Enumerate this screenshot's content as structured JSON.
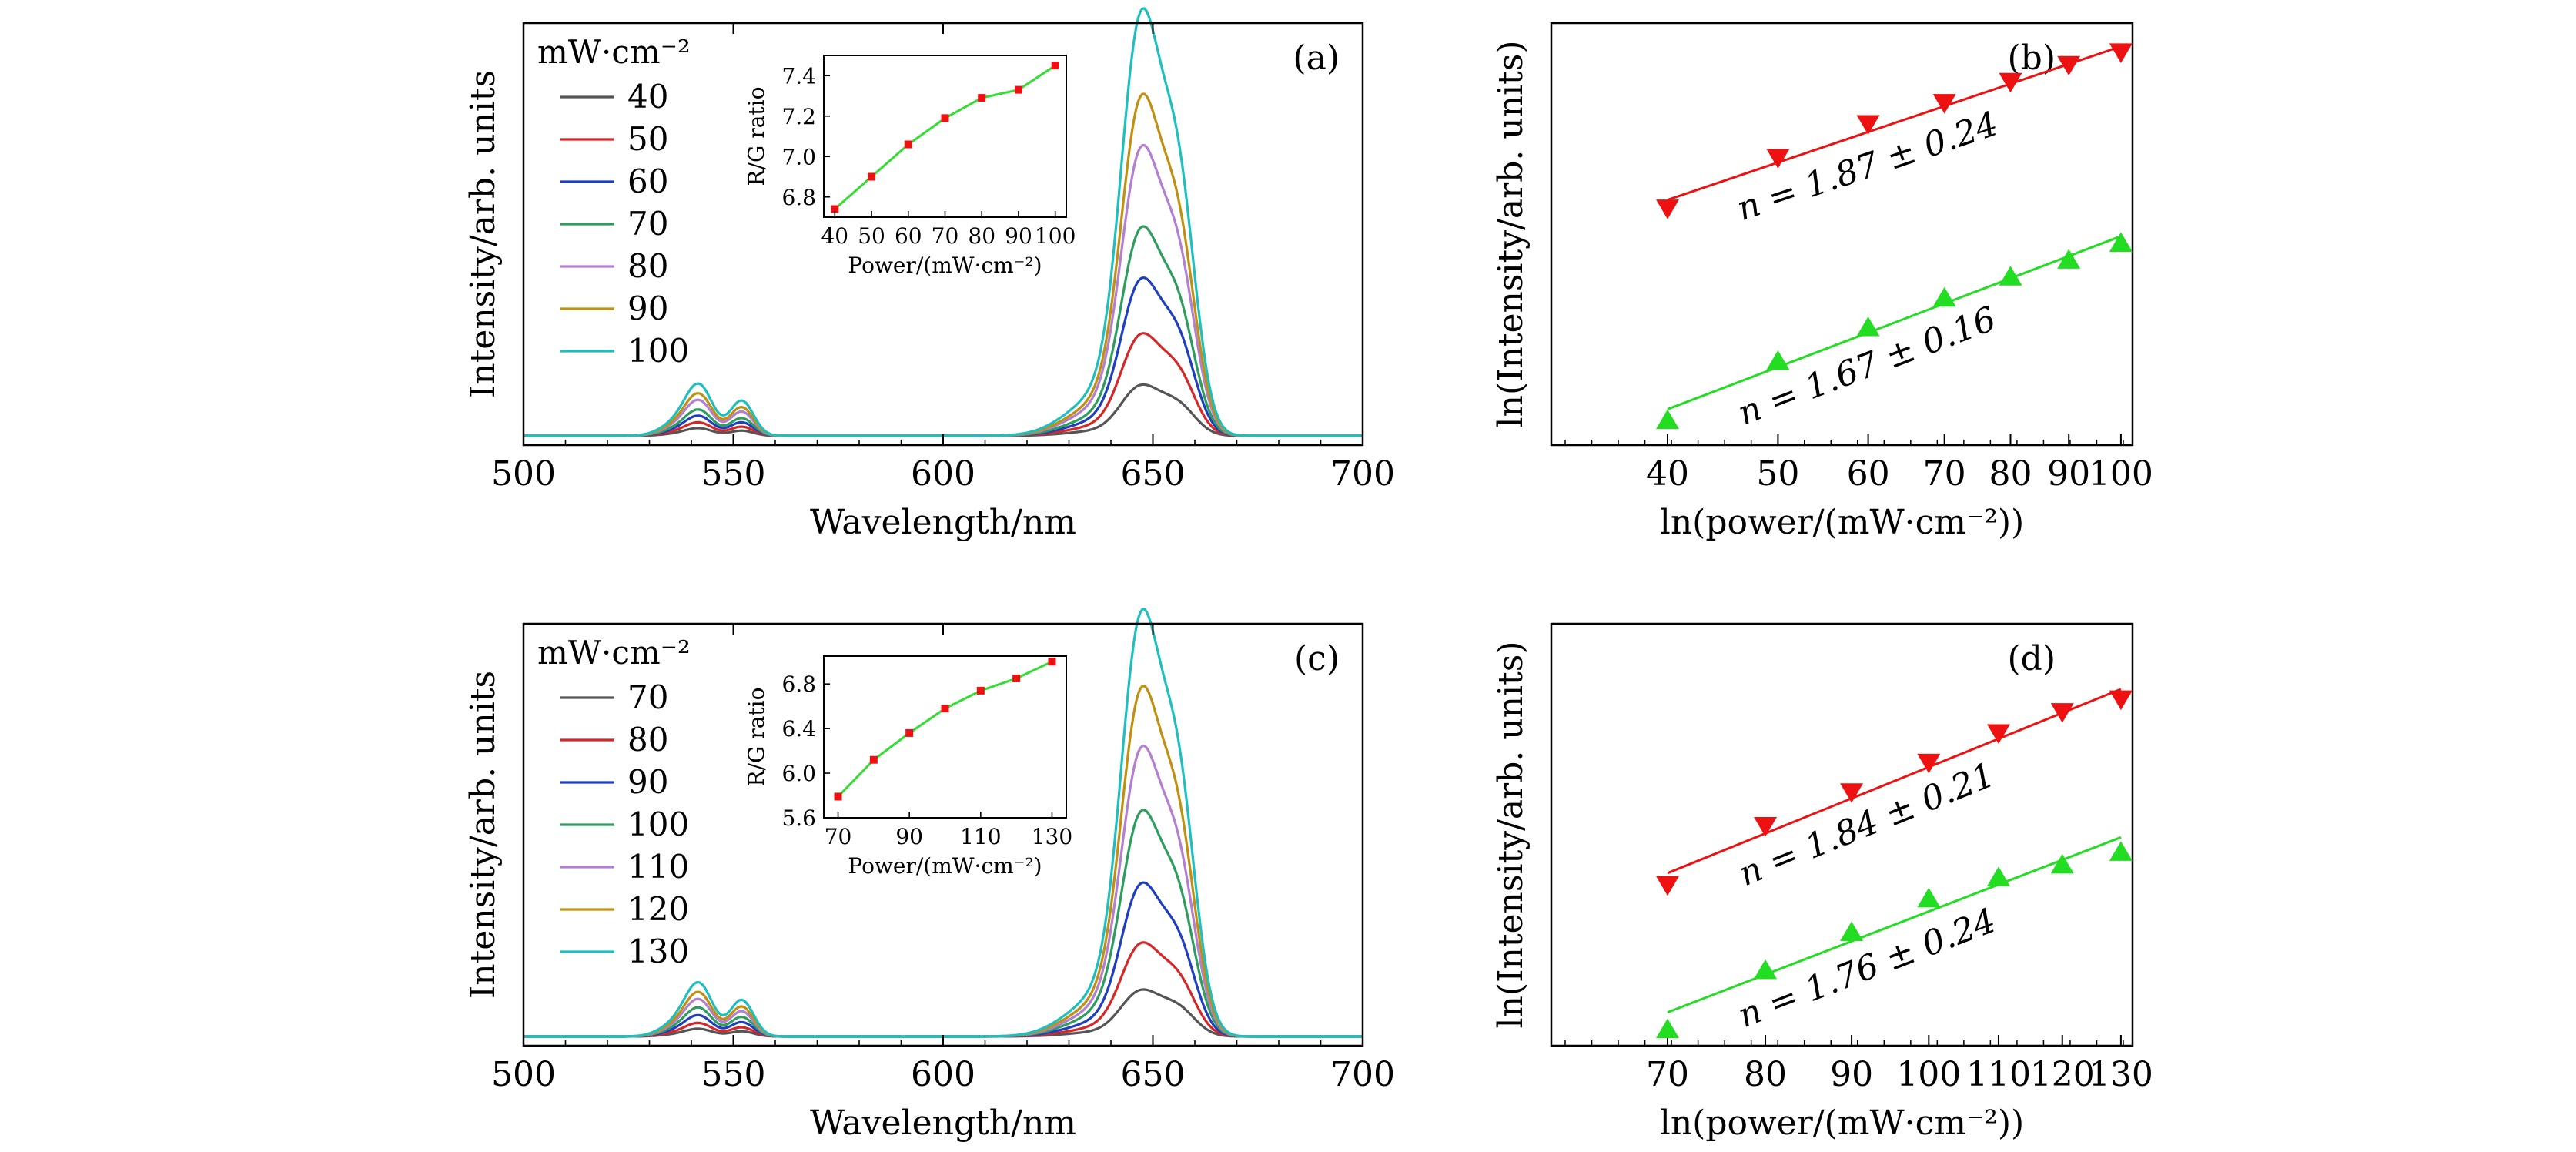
{
  "chart_data": [
    {
      "panel": "(a)",
      "type": "line",
      "xlabel": "Wavelength/nm",
      "ylabel": "Intensity/arb. units",
      "xlim": [
        500,
        700
      ],
      "xticks": [
        "500",
        "550",
        "600",
        "650",
        "700"
      ],
      "legend_title": "mW·cm⁻²",
      "legend_position": "top-left",
      "series": [
        {
          "name": "40",
          "color": "#555555",
          "peak_red": 0.12,
          "peak_green": 0.02
        },
        {
          "name": "50",
          "color": "#d62728",
          "peak_red": 0.24,
          "peak_green": 0.035
        },
        {
          "name": "60",
          "color": "#1f3fc0",
          "peak_red": 0.37,
          "peak_green": 0.052
        },
        {
          "name": "70",
          "color": "#2e9e5e",
          "peak_red": 0.49,
          "peak_green": 0.068
        },
        {
          "name": "80",
          "color": "#b37fd1",
          "peak_red": 0.68,
          "peak_green": 0.093
        },
        {
          "name": "90",
          "color": "#c09010",
          "peak_red": 0.8,
          "peak_green": 0.11
        },
        {
          "name": "100",
          "color": "#1fbfbf",
          "peak_red": 1.0,
          "peak_green": 0.135
        }
      ],
      "inset": {
        "xlabel": "Power/(mW·cm⁻²)",
        "ylabel": "R/G ratio",
        "x": [
          40,
          50,
          60,
          70,
          80,
          90,
          100
        ],
        "y": [
          6.74,
          6.9,
          7.06,
          7.19,
          7.29,
          7.33,
          7.45
        ],
        "xlim": [
          37,
          103
        ],
        "ylim": [
          6.7,
          7.5
        ],
        "xticks": [
          "40",
          "50",
          "60",
          "70",
          "80",
          "90",
          "100"
        ],
        "yticks": [
          "6.8",
          "7.0",
          "7.2",
          "7.4"
        ]
      }
    },
    {
      "panel": "(b)",
      "type": "scatter",
      "xscale": "log",
      "xlabel": "ln(power/(mW·cm⁻²))",
      "ylabel": "ln(Intensity/arb. units)",
      "xticks": [
        "40",
        "50",
        "60",
        "70",
        "80",
        "90",
        "100"
      ],
      "series": [
        {
          "name": "red",
          "marker": "triangle-down",
          "color": "#ee1111",
          "x": [
            40,
            50,
            60,
            70,
            80,
            90,
            100
          ],
          "y": [
            0.56,
            0.68,
            0.76,
            0.81,
            0.86,
            0.9,
            0.93
          ],
          "fit": "n = 1.87 ± 0.24"
        },
        {
          "name": "green",
          "marker": "triangle-up",
          "color": "#22dd22",
          "x": [
            40,
            50,
            60,
            70,
            80,
            90,
            100
          ],
          "y": [
            0.06,
            0.2,
            0.28,
            0.35,
            0.4,
            0.44,
            0.48
          ],
          "fit": "n = 1.67 ± 0.16"
        }
      ]
    },
    {
      "panel": "(c)",
      "type": "line",
      "xlabel": "Wavelength/nm",
      "ylabel": "Intensity/arb. units",
      "xlim": [
        500,
        700
      ],
      "xticks": [
        "500",
        "550",
        "600",
        "650",
        "700"
      ],
      "legend_title": "mW·cm⁻²",
      "legend_position": "top-left",
      "series": [
        {
          "name": "70",
          "color": "#555555",
          "peak_red": 0.11,
          "peak_green": 0.02
        },
        {
          "name": "80",
          "color": "#d62728",
          "peak_red": 0.22,
          "peak_green": 0.035
        },
        {
          "name": "90",
          "color": "#1f3fc0",
          "peak_red": 0.36,
          "peak_green": 0.055
        },
        {
          "name": "100",
          "color": "#2e9e5e",
          "peak_red": 0.53,
          "peak_green": 0.075
        },
        {
          "name": "110",
          "color": "#b37fd1",
          "peak_red": 0.68,
          "peak_green": 0.097
        },
        {
          "name": "120",
          "color": "#c09010",
          "peak_red": 0.82,
          "peak_green": 0.115
        },
        {
          "name": "130",
          "color": "#1fbfbf",
          "peak_red": 1.0,
          "peak_green": 0.14
        }
      ],
      "inset": {
        "xlabel": "Power/(mW·cm⁻²)",
        "ylabel": "R/G ratio",
        "x": [
          70,
          80,
          90,
          100,
          110,
          120,
          130
        ],
        "y": [
          5.79,
          6.12,
          6.36,
          6.58,
          6.74,
          6.85,
          7.0
        ],
        "xlim": [
          66,
          134
        ],
        "ylim": [
          5.6,
          7.05
        ],
        "xticks": [
          "70",
          "90",
          "110",
          "130"
        ],
        "yticks": [
          "5.6",
          "6.0",
          "6.4",
          "6.8"
        ]
      }
    },
    {
      "panel": "(d)",
      "type": "scatter",
      "xscale": "log",
      "xlabel": "ln(power/(mW·cm⁻²))",
      "ylabel": "ln(Intensity/arb. units)",
      "xticks": [
        "70",
        "80",
        "90",
        "100",
        "110",
        "120",
        "130"
      ],
      "series": [
        {
          "name": "red",
          "marker": "triangle-down",
          "color": "#ee1111",
          "x": [
            70,
            80,
            90,
            100,
            110,
            120,
            130
          ],
          "y": [
            0.38,
            0.52,
            0.6,
            0.67,
            0.74,
            0.79,
            0.82
          ],
          "fit": "n = 1.84 ± 0.21"
        },
        {
          "name": "green",
          "marker": "triangle-up",
          "color": "#22dd22",
          "x": [
            70,
            80,
            90,
            100,
            110,
            120,
            130
          ],
          "y": [
            0.04,
            0.18,
            0.27,
            0.35,
            0.4,
            0.43,
            0.46
          ],
          "fit": "n = 1.76 ± 0.24"
        }
      ]
    }
  ]
}
